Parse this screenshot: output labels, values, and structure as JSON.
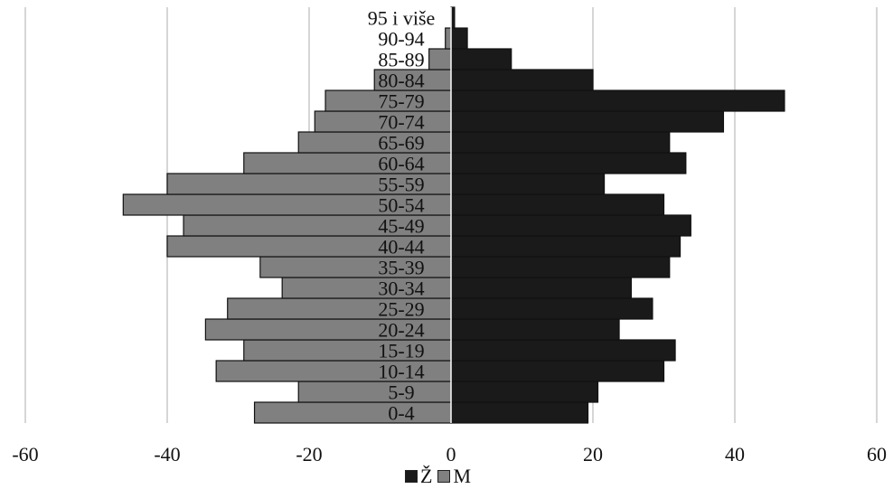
{
  "chart_data": {
    "type": "bar",
    "orientation": "horizontal",
    "subtype": "population-pyramid",
    "categories": [
      "0-4",
      "5-9",
      "10-14",
      "15-19",
      "20-24",
      "25-29",
      "30-34",
      "35-39",
      "40-44",
      "45-49",
      "50-54",
      "55-59",
      "60-64",
      "65-69",
      "70-74",
      "75-79",
      "80-84",
      "85-89",
      "90-94",
      "95 i više"
    ],
    "series": [
      {
        "name": "Ž",
        "color": "#1a1a1a",
        "values": [
          19.3,
          20.7,
          30.0,
          31.6,
          23.7,
          28.4,
          25.4,
          30.8,
          32.3,
          33.8,
          30.0,
          21.6,
          33.1,
          30.8,
          38.4,
          47.0,
          20.0,
          8.5,
          2.3,
          0.5
        ]
      },
      {
        "name": "M",
        "color": "#808080",
        "values": [
          -27.7,
          -21.5,
          -33.1,
          -29.2,
          -34.6,
          -31.5,
          -23.8,
          -26.9,
          -40.0,
          -37.7,
          -46.2,
          -40.0,
          -29.2,
          -21.5,
          -19.2,
          -17.7,
          -10.8,
          -3.1,
          -0.8,
          0.0
        ]
      }
    ],
    "xlim": [
      -60,
      60
    ],
    "xticks": [
      "-60",
      "-40",
      "-20",
      "0",
      "20",
      "40",
      "60"
    ],
    "xtick_values": [
      -60,
      -40,
      -20,
      0,
      20,
      40,
      60
    ],
    "grid": "vertical",
    "legend_position": "bottom",
    "title": "",
    "xlabel": "",
    "ylabel": ""
  },
  "legend": {
    "female": "Ž",
    "male": "M"
  }
}
